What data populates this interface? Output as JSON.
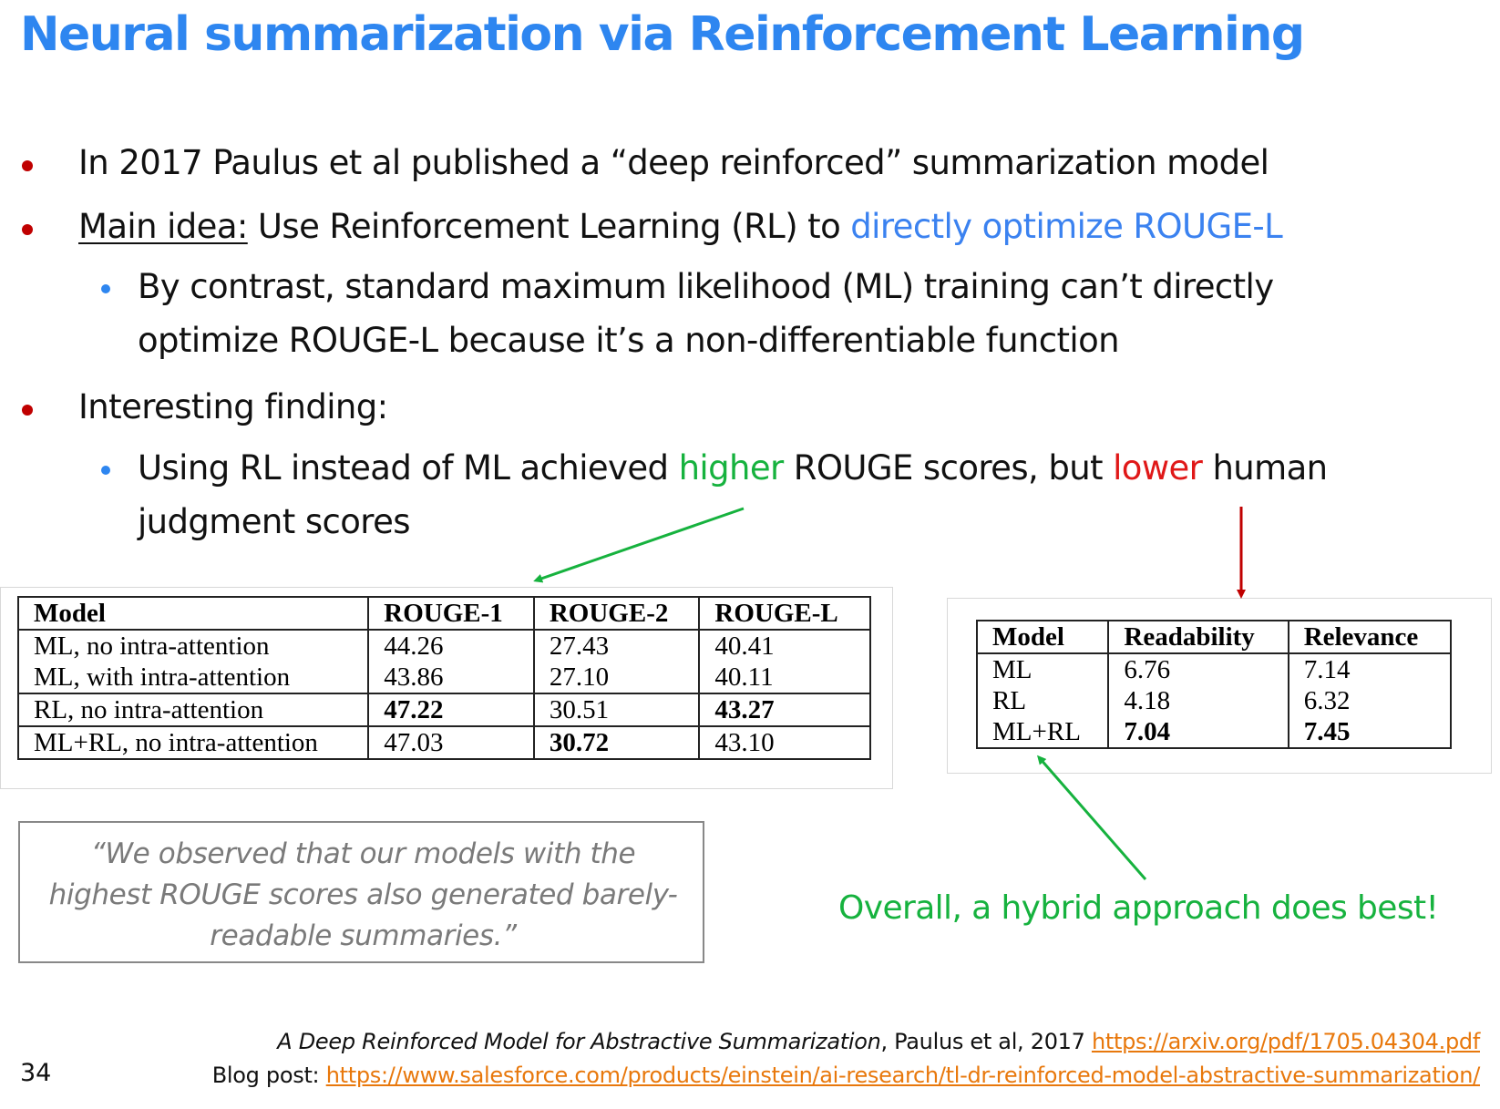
{
  "slide": {
    "title": "Neural summarization via Reinforcement Learning",
    "page_number": "34"
  },
  "bullets": {
    "b1": "In 2017 Paulus et al published a “deep reinforced” summarization model",
    "b2_underlined": "Main idea:",
    "b2_text": " Use Reinforcement Learning (RL) to ",
    "b2_highlight": "directly optimize ROUGE-L",
    "b2_sub_line1": "By contrast, standard maximum likelihood (ML) training can’t directly",
    "b2_sub_line2": "optimize ROUGE-L because it’s a non-differentiable function",
    "b3": "Interesting finding:",
    "b3_sub_pre": "Using RL instead of ML achieved ",
    "b3_sub_higher": "higher",
    "b3_sub_mid": " ROUGE scores, but ",
    "b3_sub_lower": "lower",
    "b3_sub_post": " human",
    "b3_sub_line2": "judgment scores"
  },
  "rouge_table": {
    "headers": [
      "Model",
      "ROUGE-1",
      "ROUGE-2",
      "ROUGE-L"
    ],
    "rows": [
      [
        "ML, no intra-attention",
        "44.26",
        "27.43",
        "40.41"
      ],
      [
        "ML, with intra-attention",
        "43.86",
        "27.10",
        "40.11"
      ],
      [
        "RL, no intra-attention",
        "47.22",
        "30.51",
        "43.27"
      ],
      [
        "ML+RL, no intra-attention",
        "47.03",
        "30.72",
        "43.10"
      ]
    ]
  },
  "human_table": {
    "headers": [
      "Model",
      "Readability",
      "Relevance"
    ],
    "rows": [
      [
        "ML",
        "6.76",
        "7.14"
      ],
      [
        "RL",
        "4.18",
        "6.32"
      ],
      [
        "ML+RL",
        "7.04",
        "7.45"
      ]
    ]
  },
  "quote": {
    "line1": "“We observed that our models with the",
    "line2": "highest ROUGE scores also generated barely-",
    "line3": "readable summaries.”"
  },
  "conclusion": "Overall, a hybrid approach does best!",
  "references": {
    "paper_title": "A Deep Reinforced Model for Abstractive Summarization",
    "paper_authors": ", Paulus et al, 2017 ",
    "paper_url": "https://arxiv.org/pdf/1705.04304.pdf",
    "blog_label": "Blog post: ",
    "blog_url": "https://www.salesforce.com/products/einstein/ai-research/tl-dr-reinforced-model-abstractive-summarization/"
  },
  "colors": {
    "title_blue": "#2e86f0",
    "bullet_red": "#c00000",
    "highlight_green": "#16b23e",
    "highlight_red": "#e01818",
    "link_orange": "#e8780c"
  }
}
